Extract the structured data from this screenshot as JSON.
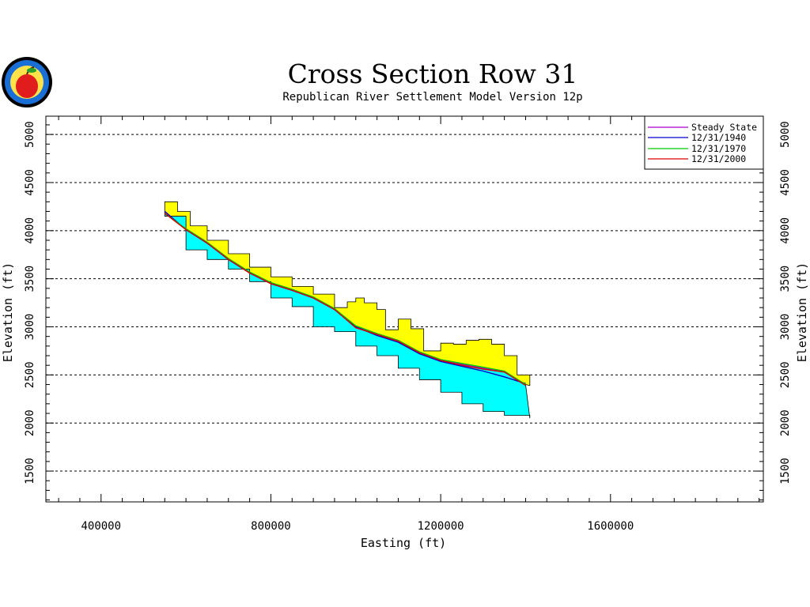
{
  "logo": {
    "name": "Republican River Compact Administration seal (apple)"
  },
  "chart_data": {
    "type": "line",
    "title": "Cross Section Row 31",
    "subtitle": "Republican River Settlement Model Version 12p",
    "xlabel": "Easting (ft)",
    "ylabel": "Elevation (ft)",
    "xlim": [
      270000,
      1960000
    ],
    "ylim": [
      1180000,
      5190000
    ],
    "ylim_note": "",
    "xticks": [
      400000,
      800000,
      1200000,
      1600000
    ],
    "yticks": [
      1500,
      2000,
      2500,
      3000,
      3500,
      4000,
      4500,
      5000
    ],
    "grid": "horizontal dashed",
    "legend_position": "top-right",
    "x": [
      550000,
      600000,
      650000,
      700000,
      750000,
      800000,
      850000,
      900000,
      950000,
      1000000,
      1050000,
      1100000,
      1150000,
      1200000,
      1250000,
      1300000,
      1350000,
      1400000
    ],
    "series": [
      {
        "name": "Steady State",
        "color": "#aa00cc",
        "values": [
          4200,
          4010,
          3870,
          3700,
          3560,
          3450,
          3380,
          3300,
          3180,
          3000,
          2920,
          2850,
          2730,
          2650,
          2610,
          2570,
          2530,
          2400
        ]
      },
      {
        "name": "12/31/1940",
        "color": "#0000cc",
        "values": [
          4200,
          4010,
          3870,
          3700,
          3560,
          3450,
          3380,
          3300,
          3180,
          3000,
          2910,
          2840,
          2720,
          2640,
          2590,
          2540,
          2480,
          2410
        ]
      },
      {
        "name": "12/31/1970",
        "color": "#00cc00",
        "values": [
          4180,
          4020,
          3880,
          3710,
          3570,
          3460,
          3390,
          3310,
          3190,
          3010,
          2930,
          2860,
          2740,
          2660,
          2620,
          2580,
          2540,
          2400
        ]
      },
      {
        "name": "12/31/2000",
        "color": "#dd0000",
        "values": [
          4180,
          4010,
          3870,
          3700,
          3560,
          3450,
          3380,
          3300,
          3180,
          2990,
          2920,
          2850,
          2730,
          2650,
          2600,
          2560,
          2530,
          2390
        ]
      }
    ],
    "land_surface": {
      "color": "#ffff00",
      "x": [
        550000,
        580000,
        610000,
        650000,
        700000,
        750000,
        800000,
        850000,
        900000,
        950000,
        980000,
        1000000,
        1020000,
        1050000,
        1070000,
        1100000,
        1130000,
        1160000,
        1200000,
        1230000,
        1260000,
        1290000,
        1320000,
        1350000,
        1380000,
        1410000
      ],
      "values": [
        4300,
        4200,
        4050,
        3900,
        3760,
        3620,
        3520,
        3420,
        3340,
        3200,
        3260,
        3300,
        3250,
        3180,
        2970,
        3080,
        2980,
        2750,
        2830,
        2820,
        2860,
        2870,
        2820,
        2700,
        2500,
        2390
      ]
    },
    "aquifer_bottom": {
      "color": "#00ffff",
      "x": [
        550000,
        600000,
        650000,
        700000,
        750000,
        800000,
        850000,
        900000,
        950000,
        1000000,
        1050000,
        1100000,
        1150000,
        1200000,
        1250000,
        1300000,
        1350000,
        1410000
      ],
      "values": [
        4150,
        3800,
        3700,
        3600,
        3470,
        3300,
        3210,
        3000,
        2950,
        2800,
        2700,
        2570,
        2450,
        2320,
        2200,
        2120,
        2080,
        2050
      ]
    }
  }
}
